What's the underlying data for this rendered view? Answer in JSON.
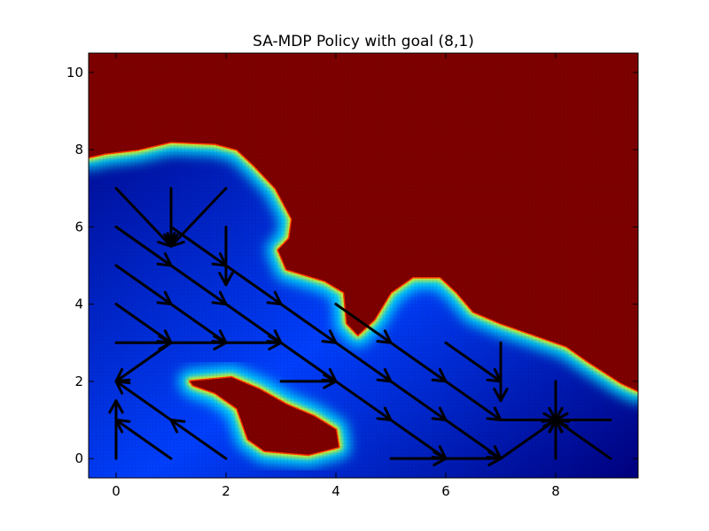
{
  "chart_data": {
    "type": "heatmap",
    "title": "SA-MDP Policy with goal (8,1)",
    "xlabel": "",
    "ylabel": "",
    "xlim": [
      -0.5,
      9.5
    ],
    "ylim": [
      -0.5,
      10.5
    ],
    "xticks": [
      0,
      2,
      4,
      6,
      8
    ],
    "yticks": [
      0,
      2,
      4,
      6,
      8,
      10
    ],
    "colormap": "jet",
    "grid": false,
    "colors": {
      "obstacle": "#7f0000",
      "free_low": "#00007f",
      "free_mid": "#0040ff",
      "edge": "#00e5ff",
      "arrow": "#000000"
    },
    "obstacles": [
      {
        "name": "upper-obstacle",
        "outline": [
          [
            -0.5,
            10.5
          ],
          [
            9.5,
            10.5
          ],
          [
            9.5,
            1.75
          ],
          [
            9.2,
            1.95
          ],
          [
            8.6,
            2.5
          ],
          [
            8.2,
            2.9
          ],
          [
            7.6,
            3.2
          ],
          [
            7.0,
            3.5
          ],
          [
            6.5,
            3.8
          ],
          [
            6.2,
            4.3
          ],
          [
            5.9,
            4.7
          ],
          [
            5.4,
            4.7
          ],
          [
            5.0,
            4.3
          ],
          [
            4.7,
            3.6
          ],
          [
            4.4,
            3.2
          ],
          [
            4.2,
            3.5
          ],
          [
            4.15,
            4.3
          ],
          [
            3.8,
            4.6
          ],
          [
            3.1,
            4.9
          ],
          [
            2.95,
            5.4
          ],
          [
            3.15,
            5.7
          ],
          [
            3.2,
            6.2
          ],
          [
            2.9,
            7.0
          ],
          [
            2.5,
            7.6
          ],
          [
            2.2,
            8.0
          ],
          [
            1.8,
            8.15
          ],
          [
            1.0,
            8.2
          ],
          [
            0.4,
            8.0
          ],
          [
            -0.2,
            7.9
          ],
          [
            -0.5,
            7.8
          ]
        ]
      },
      {
        "name": "lower-obstacle",
        "outline": [
          [
            1.35,
            2.0
          ],
          [
            2.1,
            2.1
          ],
          [
            2.6,
            1.8
          ],
          [
            3.1,
            1.4
          ],
          [
            3.6,
            1.1
          ],
          [
            4.0,
            0.75
          ],
          [
            4.05,
            0.3
          ],
          [
            3.5,
            0.1
          ],
          [
            2.7,
            0.2
          ],
          [
            2.4,
            0.5
          ],
          [
            2.2,
            1.3
          ],
          [
            1.8,
            1.7
          ],
          [
            1.4,
            1.9
          ]
        ]
      }
    ],
    "arrows": [
      {
        "x": 0,
        "y": 7,
        "dx": 1,
        "dy": -1.5
      },
      {
        "x": 1,
        "y": 7,
        "dx": 0,
        "dy": -1.5
      },
      {
        "x": 2,
        "y": 7,
        "dx": -1,
        "dy": -1.5
      },
      {
        "x": 0,
        "y": 6,
        "dx": 1,
        "dy": -1
      },
      {
        "x": 1,
        "y": 6,
        "dx": 1,
        "dy": -1
      },
      {
        "x": 2,
        "y": 6,
        "dx": 0,
        "dy": -1.5
      },
      {
        "x": 0,
        "y": 5,
        "dx": 1,
        "dy": -1
      },
      {
        "x": 1,
        "y": 5,
        "dx": 1,
        "dy": -1
      },
      {
        "x": 2,
        "y": 5,
        "dx": 1,
        "dy": -1
      },
      {
        "x": 0,
        "y": 4,
        "dx": 1,
        "dy": -1
      },
      {
        "x": 1,
        "y": 4,
        "dx": 1,
        "dy": -1
      },
      {
        "x": 2,
        "y": 4,
        "dx": 1,
        "dy": -1
      },
      {
        "x": 3,
        "y": 4,
        "dx": 1,
        "dy": -1
      },
      {
        "x": 4,
        "y": 4,
        "dx": 1,
        "dy": -1
      },
      {
        "x": 0,
        "y": 3,
        "dx": 1,
        "dy": 0
      },
      {
        "x": 1,
        "y": 3,
        "dx": -1,
        "dy": -1
      },
      {
        "x": 1,
        "y": 3,
        "dx": 1,
        "dy": 0
      },
      {
        "x": 2,
        "y": 3,
        "dx": 1,
        "dy": 0
      },
      {
        "x": 3,
        "y": 3,
        "dx": 1,
        "dy": -1
      },
      {
        "x": 4,
        "y": 3,
        "dx": 1,
        "dy": -1
      },
      {
        "x": 5,
        "y": 3,
        "dx": 1,
        "dy": -1
      },
      {
        "x": 6,
        "y": 3,
        "dx": 1,
        "dy": -1
      },
      {
        "x": 7,
        "y": 3,
        "dx": 0,
        "dy": -1.5
      },
      {
        "x": 1,
        "y": 1,
        "dx": -1,
        "dy": 1
      },
      {
        "x": 3,
        "y": 2,
        "dx": 1,
        "dy": 0
      },
      {
        "x": 4,
        "y": 2,
        "dx": 1,
        "dy": -1
      },
      {
        "x": 5,
        "y": 2,
        "dx": 1,
        "dy": -1
      },
      {
        "x": 6,
        "y": 2,
        "dx": 1,
        "dy": -1
      },
      {
        "x": 0,
        "y": 0,
        "dx": 0,
        "dy": 1.5
      },
      {
        "x": 1,
        "y": 0,
        "dx": -1,
        "dy": 1
      },
      {
        "x": 2,
        "y": 0,
        "dx": -1,
        "dy": 1
      },
      {
        "x": 5,
        "y": 1,
        "dx": 1,
        "dy": -1
      },
      {
        "x": 6,
        "y": 1,
        "dx": 1,
        "dy": -1
      },
      {
        "x": 5,
        "y": 0,
        "dx": 1,
        "dy": 0
      },
      {
        "x": 6,
        "y": 0,
        "dx": 1,
        "dy": 0
      },
      {
        "x": 7,
        "y": 0,
        "dx": 1,
        "dy": 1
      },
      {
        "x": 7,
        "y": 1,
        "dx": 1,
        "dy": 0
      },
      {
        "x": 8,
        "y": 2,
        "dx": 0,
        "dy": -1
      },
      {
        "x": 8,
        "y": 0,
        "dx": 0,
        "dy": 1
      },
      {
        "x": 9,
        "y": 1,
        "dx": -1,
        "dy": 0
      },
      {
        "x": 9,
        "y": 0,
        "dx": -1,
        "dy": 1
      }
    ]
  }
}
